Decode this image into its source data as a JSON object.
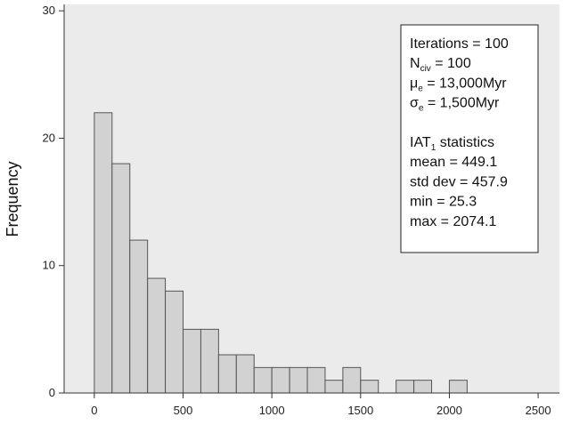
{
  "chart_data": {
    "type": "bar",
    "subtype": "histogram",
    "bin_width": 100,
    "bins": [
      {
        "start": 0,
        "end": 100,
        "count": 22
      },
      {
        "start": 100,
        "end": 200,
        "count": 18
      },
      {
        "start": 200,
        "end": 300,
        "count": 12
      },
      {
        "start": 300,
        "end": 400,
        "count": 9
      },
      {
        "start": 400,
        "end": 500,
        "count": 8
      },
      {
        "start": 500,
        "end": 600,
        "count": 5
      },
      {
        "start": 600,
        "end": 700,
        "count": 5
      },
      {
        "start": 700,
        "end": 800,
        "count": 3
      },
      {
        "start": 800,
        "end": 900,
        "count": 3
      },
      {
        "start": 900,
        "end": 1000,
        "count": 2
      },
      {
        "start": 1000,
        "end": 1100,
        "count": 2
      },
      {
        "start": 1100,
        "end": 1200,
        "count": 2
      },
      {
        "start": 1200,
        "end": 1300,
        "count": 2
      },
      {
        "start": 1300,
        "end": 1400,
        "count": 1
      },
      {
        "start": 1400,
        "end": 1500,
        "count": 2
      },
      {
        "start": 1500,
        "end": 1600,
        "count": 1
      },
      {
        "start": 1700,
        "end": 1800,
        "count": 1
      },
      {
        "start": 1800,
        "end": 1900,
        "count": 1
      },
      {
        "start": 2000,
        "end": 2100,
        "count": 1
      }
    ],
    "xlim": [
      -170,
      2620
    ],
    "ylim": [
      0,
      30.5
    ],
    "x_ticks": [
      0,
      500,
      1000,
      1500,
      2000,
      2500
    ],
    "x_tick_labels": [
      "0",
      "500",
      "1000",
      "1500",
      "2000",
      "2500"
    ],
    "y_ticks": [
      0,
      10,
      20,
      30
    ],
    "y_tick_labels": [
      "0",
      "10",
      "20",
      "30"
    ],
    "xlabel": "",
    "ylabel": "Frequency",
    "grid": false,
    "colors": {
      "plot_background": "#ebebeb",
      "bar_fill": "#d2d2d2",
      "bar_stroke": "#555555",
      "axis": "#333333"
    },
    "annotation": {
      "placement": "top-right",
      "lines": [
        {
          "segments": [
            {
              "text": "Iterations = 100"
            }
          ]
        },
        {
          "segments": [
            {
              "text": "N"
            },
            {
              "text": "civ",
              "sub": true
            },
            {
              "text": " = 100"
            }
          ]
        },
        {
          "segments": [
            {
              "text": "μ"
            },
            {
              "text": "e",
              "sub": true
            },
            {
              "text": " = 13,000Myr"
            }
          ]
        },
        {
          "segments": [
            {
              "text": "σ"
            },
            {
              "text": "e",
              "sub": true
            },
            {
              "text": " = 1,500Myr"
            }
          ]
        },
        {
          "segments": [
            {
              "text": ""
            }
          ]
        },
        {
          "segments": [
            {
              "text": "IAT"
            },
            {
              "text": "1",
              "sub": true
            },
            {
              "text": "  statistics"
            }
          ]
        },
        {
          "segments": [
            {
              "text": "mean = 449.1"
            }
          ]
        },
        {
          "segments": [
            {
              "text": "std dev = 457.9"
            }
          ]
        },
        {
          "segments": [
            {
              "text": "min = 25.3"
            }
          ]
        },
        {
          "segments": [
            {
              "text": "max = 2074.1"
            }
          ]
        }
      ]
    }
  }
}
